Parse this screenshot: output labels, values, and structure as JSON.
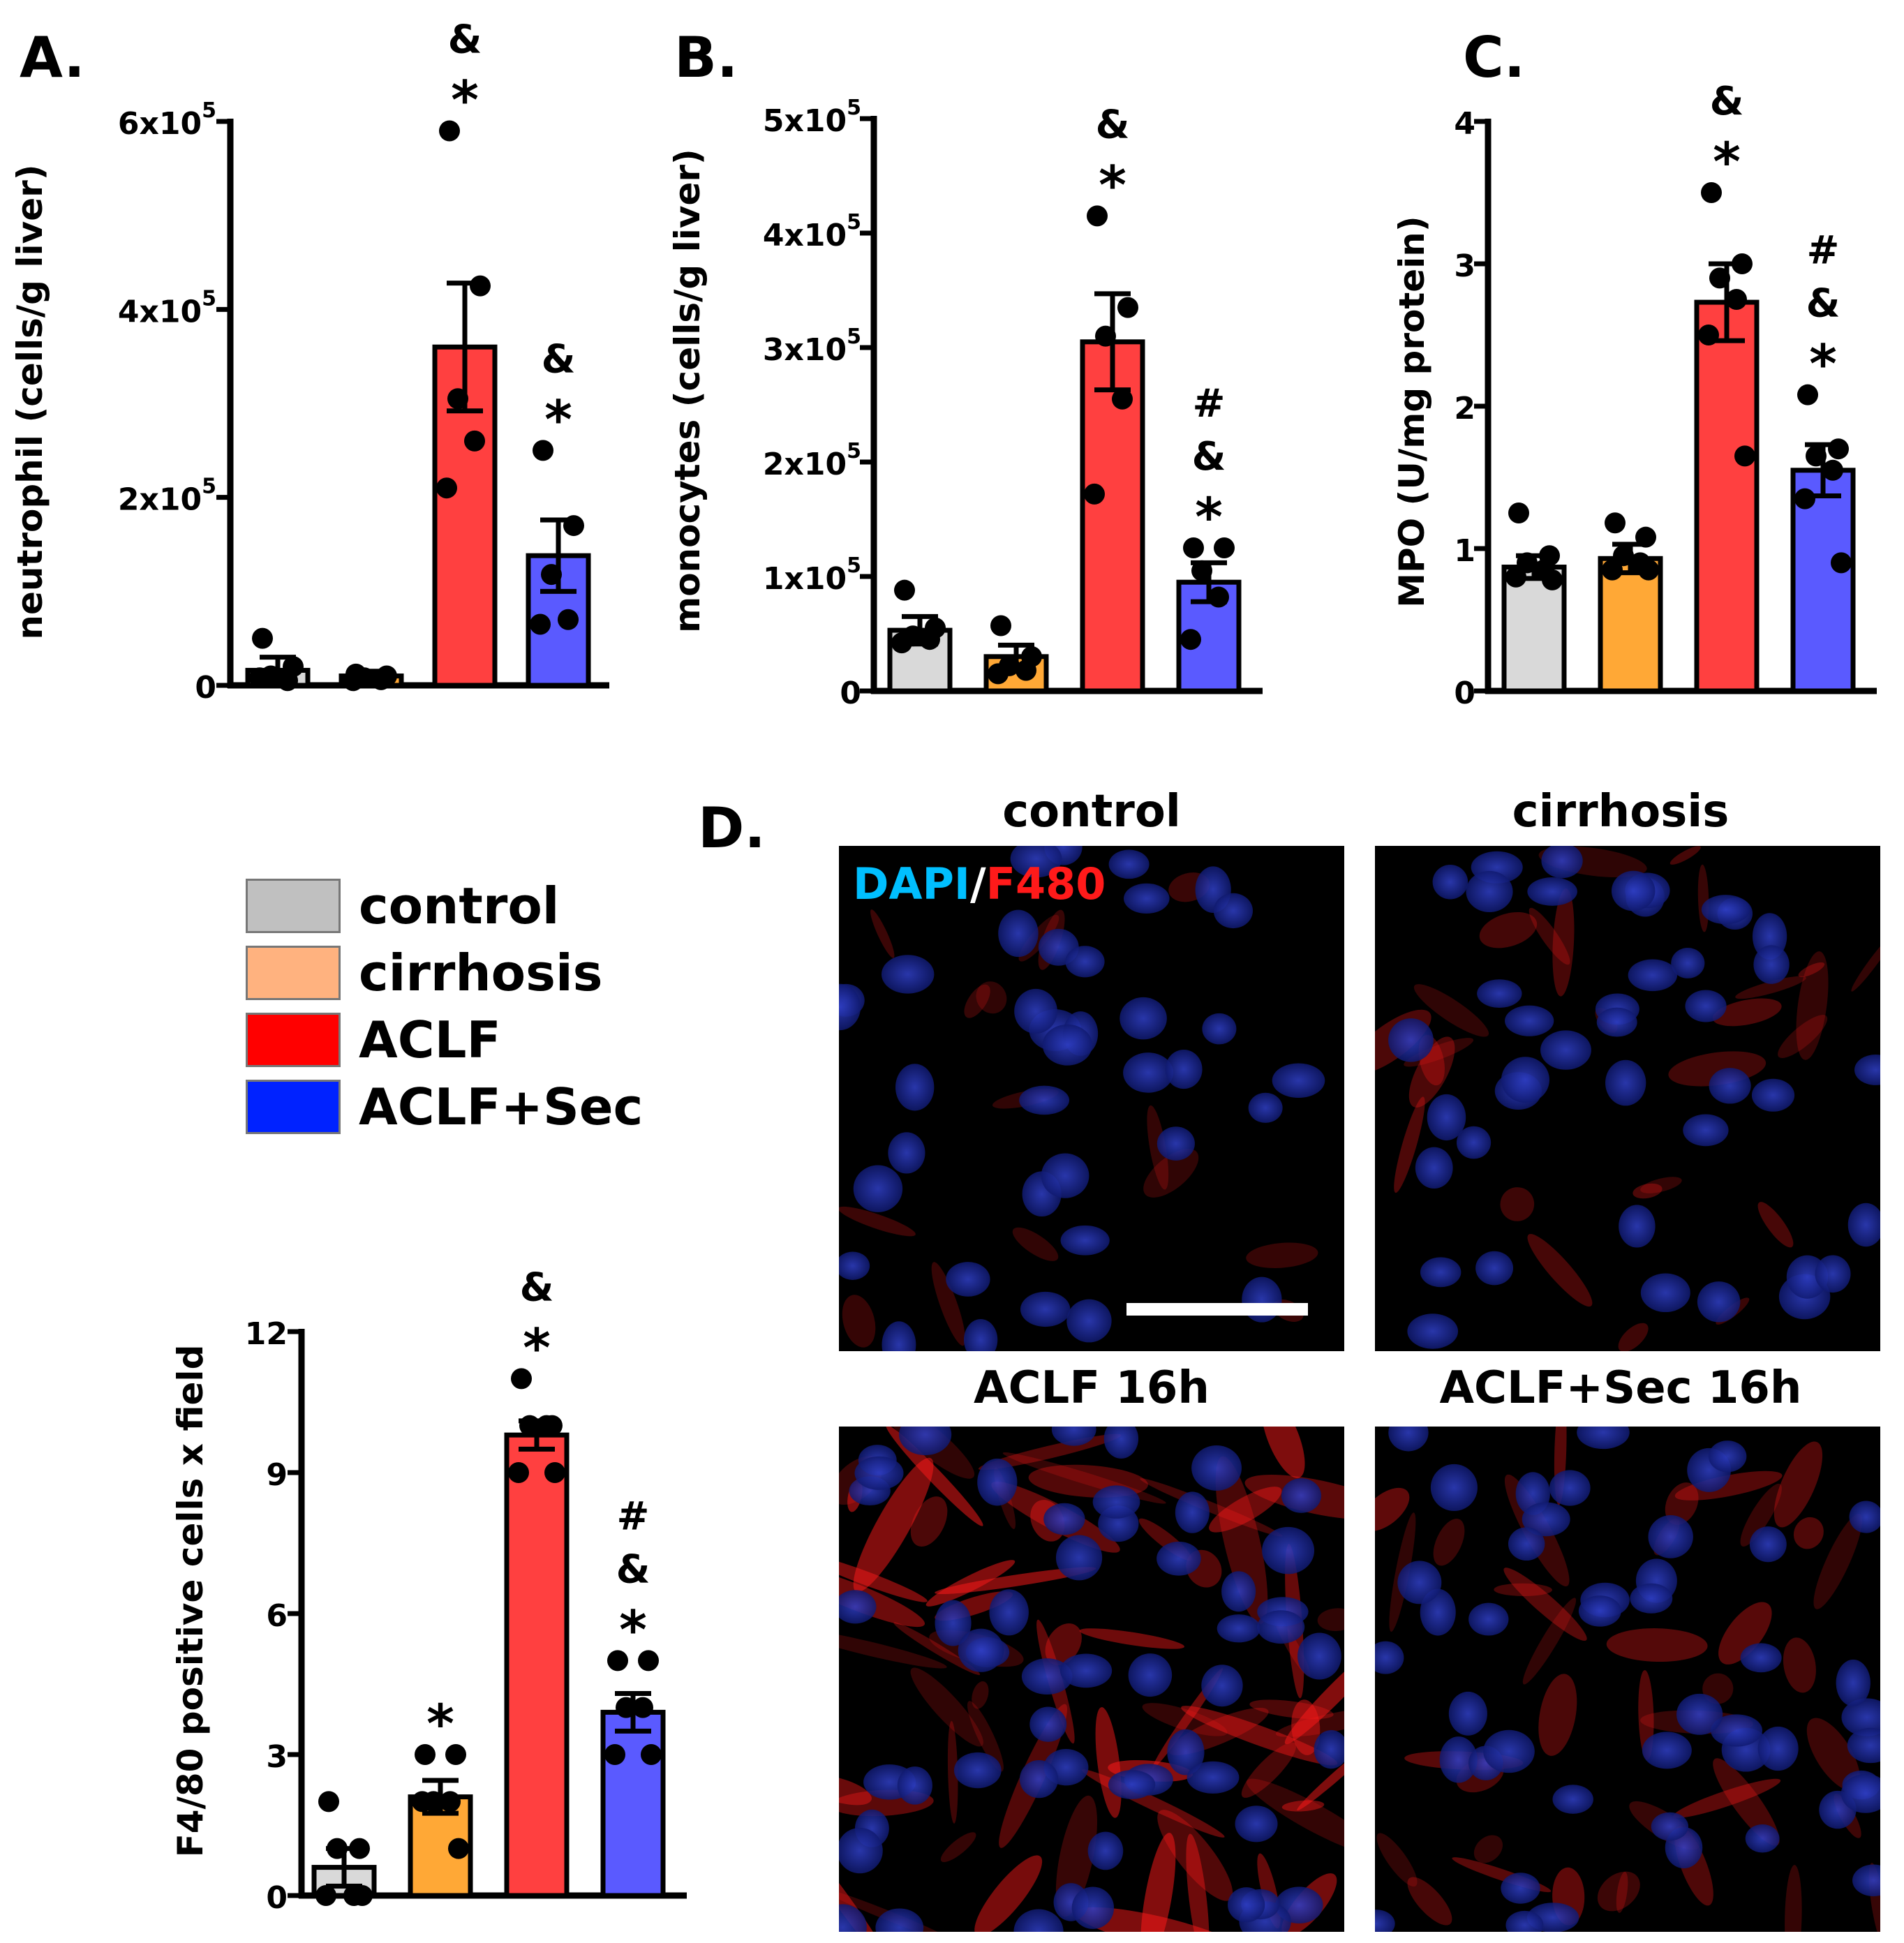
{
  "colors": {
    "control": "#d9d9d9",
    "cirrhosis": "#ffa836",
    "ACLF": "#ff4040",
    "ACLF_Sec": "#5a5aff",
    "legend_control": "#c0c0c0",
    "legend_cirrhosis": "#ffb27f",
    "legend_ACLF": "#ff0000",
    "legend_ACLF_Sec": "#0022ff",
    "dapi": "#00bfff",
    "f480": "#ff1a1a",
    "nuclei": "#1a2aa8"
  },
  "panels": {
    "A": "A.",
    "B": "B.",
    "C": "C.",
    "D": "D."
  },
  "legend": {
    "items": [
      {
        "label": "control",
        "color_key": "legend_control"
      },
      {
        "label": "cirrhosis",
        "color_key": "legend_cirrhosis"
      },
      {
        "label": "ACLF",
        "color_key": "legend_ACLF"
      },
      {
        "label": "ACLF+Sec",
        "color_key": "legend_ACLF_Sec"
      }
    ]
  },
  "chart_data": [
    {
      "id": "A",
      "type": "bar",
      "ylabel": "neutrophil (cells/g liver)",
      "categories": [
        "control",
        "cirrhosis",
        "ACLF",
        "ACLF+Sec"
      ],
      "ylim": [
        0,
        600000
      ],
      "ticks": [
        {
          "value": 0,
          "label": "0",
          "exp": ""
        },
        {
          "value": 200000,
          "label": "2x10",
          "exp": "5"
        },
        {
          "value": 400000,
          "label": "4x10",
          "exp": "5"
        },
        {
          "value": 600000,
          "label": "6x10",
          "exp": "5"
        }
      ],
      "values": [
        16000,
        10000,
        360000,
        138000
      ],
      "errors": [
        14000,
        5000,
        68000,
        38000
      ],
      "points": [
        [
          50000,
          20000,
          10000,
          5000,
          8000
        ],
        [
          12000,
          10000,
          8000,
          6000,
          5000
        ],
        [
          590000,
          425000,
          305000,
          260000,
          210000
        ],
        [
          250000,
          170000,
          118000,
          70000,
          65000
        ]
      ],
      "annotations": [
        [
          "",
          ""
        ],
        [
          "",
          ""
        ],
        [
          "&",
          "*"
        ],
        [
          "&",
          "*"
        ]
      ]
    },
    {
      "id": "B",
      "type": "bar",
      "ylabel": "monocytes (cells/g liver)",
      "categories": [
        "control",
        "cirrhosis",
        "ACLF",
        "ACLF+Sec"
      ],
      "ylim": [
        0,
        500000
      ],
      "ticks": [
        {
          "value": 0,
          "label": "0",
          "exp": ""
        },
        {
          "value": 100000,
          "label": "1x10",
          "exp": "5"
        },
        {
          "value": 200000,
          "label": "2x10",
          "exp": "5"
        },
        {
          "value": 300000,
          "label": "3x10",
          "exp": "5"
        },
        {
          "value": 400000,
          "label": "4x10",
          "exp": "5"
        },
        {
          "value": 500000,
          "label": "5x10",
          "exp": "5"
        }
      ],
      "values": [
        53000,
        30000,
        305000,
        95000
      ],
      "errors": [
        12000,
        10000,
        42000,
        17000
      ],
      "points": [
        [
          88000,
          55000,
          48000,
          45000,
          42000
        ],
        [
          57000,
          30000,
          22000,
          18000,
          15000
        ],
        [
          415000,
          335000,
          310000,
          255000,
          172000
        ],
        [
          125000,
          125000,
          105000,
          82000,
          45000
        ]
      ],
      "annotations": [
        [
          "",
          "",
          ""
        ],
        [
          "",
          "",
          ""
        ],
        [
          "",
          "&",
          "*"
        ],
        [
          "#",
          "&",
          "*"
        ]
      ]
    },
    {
      "id": "C",
      "type": "bar",
      "ylabel": "MPO (U/mg protein)",
      "categories": [
        "control",
        "cirrhosis",
        "ACLF",
        "ACLF+Sec"
      ],
      "ylim": [
        0,
        4
      ],
      "ticks": [
        {
          "value": 0,
          "label": "0",
          "exp": ""
        },
        {
          "value": 1,
          "label": "1",
          "exp": ""
        },
        {
          "value": 2,
          "label": "2",
          "exp": ""
        },
        {
          "value": 3,
          "label": "3",
          "exp": ""
        },
        {
          "value": 4,
          "label": "4",
          "exp": ""
        }
      ],
      "values": [
        0.87,
        0.93,
        2.73,
        1.55
      ],
      "errors": [
        0.08,
        0.1,
        0.27,
        0.18
      ],
      "points": [
        [
          1.25,
          0.95,
          0.9,
          0.85,
          0.8,
          0.78
        ],
        [
          1.18,
          1.08,
          0.95,
          0.9,
          0.85,
          0.85
        ],
        [
          3.5,
          3.0,
          2.9,
          2.75,
          2.5,
          1.65
        ],
        [
          2.08,
          1.7,
          1.65,
          1.55,
          1.35,
          0.9
        ]
      ],
      "annotations": [
        [
          "",
          "",
          ""
        ],
        [
          "",
          "",
          ""
        ],
        [
          "",
          "&",
          "*"
        ],
        [
          "#",
          "&",
          "*"
        ]
      ]
    },
    {
      "id": "F480",
      "type": "bar",
      "ylabel": "F4/80 positive cells  x field",
      "categories": [
        "control",
        "cirrhosis",
        "ACLF",
        "ACLF+Sec"
      ],
      "ylim": [
        0,
        12
      ],
      "ticks": [
        {
          "value": 0,
          "label": "0",
          "exp": ""
        },
        {
          "value": 3,
          "label": "3",
          "exp": ""
        },
        {
          "value": 6,
          "label": "6",
          "exp": ""
        },
        {
          "value": 9,
          "label": "9",
          "exp": ""
        },
        {
          "value": 12,
          "label": "12",
          "exp": ""
        }
      ],
      "values": [
        0.6,
        2.1,
        9.8,
        3.9
      ],
      "errors": [
        0.4,
        0.35,
        0.3,
        0.4
      ],
      "points": [
        [
          2.0,
          1.0,
          1.0,
          0.0,
          0.0,
          0.0
        ],
        [
          3.0,
          3.0,
          2.0,
          2.0,
          2.0,
          1.0
        ],
        [
          11.0,
          10.0,
          10.0,
          10.0,
          9.0,
          9.0
        ],
        [
          5.0,
          5.0,
          4.0,
          4.0,
          3.0,
          3.0
        ]
      ],
      "annotations": [
        [
          "",
          "",
          ""
        ],
        [
          "",
          "",
          "*"
        ],
        [
          "",
          "&",
          "*"
        ],
        [
          "#",
          "&",
          "*"
        ]
      ]
    }
  ],
  "micrographs": {
    "stain_dapi": "DAPI",
    "stain_slash": "/",
    "stain_f480": "F480",
    "titles": [
      "control",
      "cirrhosis",
      "ACLF 16h",
      "ACLF+Sec 16h"
    ],
    "f480_density": [
      0.15,
      0.35,
      1.0,
      0.55
    ]
  }
}
